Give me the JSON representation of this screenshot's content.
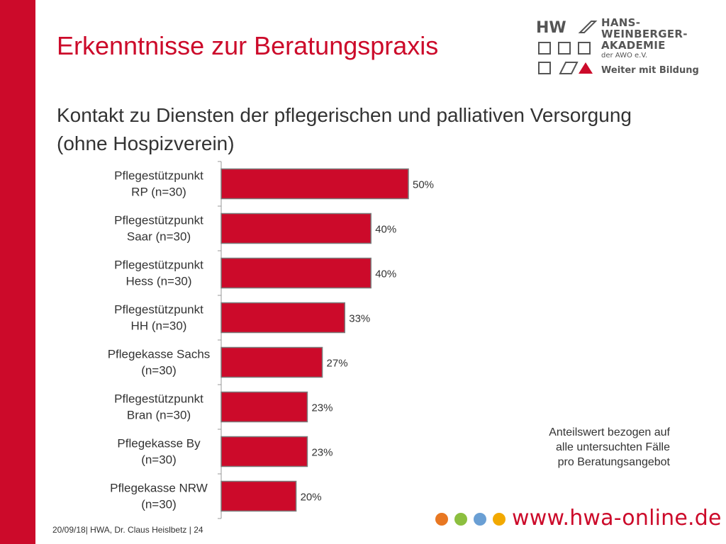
{
  "slide": {
    "title": "Erkenntnisse zur Beratungspraxis",
    "subtitle": "Kontakt zu Diensten der pflegerischen und palliativen Versorgung (ohne Hospizverein)",
    "note_lines": [
      "Anteilswert bezogen auf",
      "alle untersuchten Fälle",
      "pro Beratungsangebot"
    ],
    "footer": "20/09/18| HWA, Dr. Claus Heislbetz | 24",
    "url": "www.hwa-online.de"
  },
  "logo": {
    "lines": [
      "HANS-",
      "WEINBERGER-",
      "AKADEMIE"
    ],
    "sub": "der AWO e.V.",
    "tagline": "Weiter mit Bildung",
    "mark": "HW"
  },
  "colors": {
    "accent": "#cc0a2a",
    "bar": "#cc0a2a",
    "dots": [
      "#e87722",
      "#8cbf3f",
      "#6a9fd4",
      "#f2a900"
    ]
  },
  "chart_data": {
    "type": "bar",
    "orientation": "horizontal",
    "categories": [
      [
        "Pflegestützpunkt",
        "RP (n=30)"
      ],
      [
        "Pflegestützpunkt",
        "Saar (n=30)"
      ],
      [
        "Pflegestützpunkt",
        "Hess (n=30)"
      ],
      [
        "Pflegestützpunkt",
        "HH (n=30)"
      ],
      [
        "Pflegekasse Sachs",
        "(n=30)"
      ],
      [
        "Pflegestützpunkt",
        "Bran (n=30)"
      ],
      [
        "Pflegekasse By",
        "(n=30)"
      ],
      [
        "Pflegekasse NRW",
        "(n=30)"
      ]
    ],
    "values": [
      50,
      40,
      40,
      33,
      27,
      23,
      23,
      20
    ],
    "data_labels": [
      "50%",
      "40%",
      "40%",
      "33%",
      "27%",
      "23%",
      "23%",
      "20%"
    ],
    "xlim": [
      0,
      100
    ],
    "grid": false,
    "legend": "none"
  }
}
